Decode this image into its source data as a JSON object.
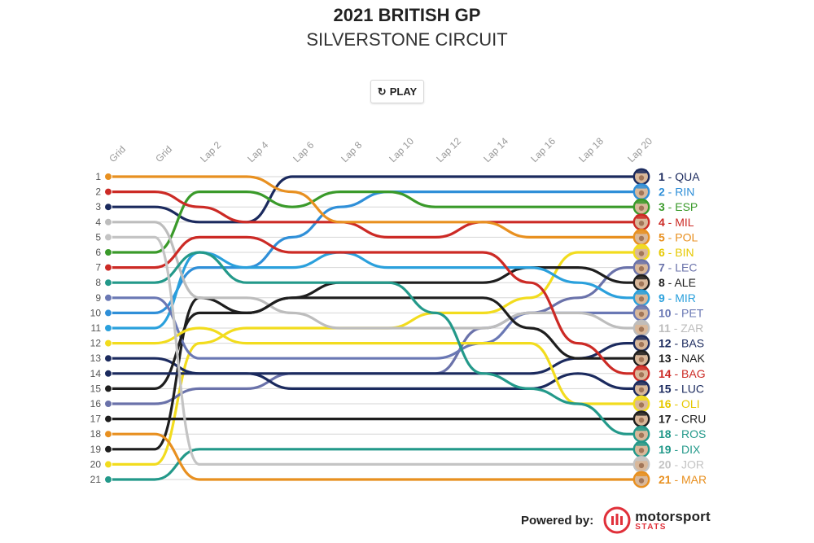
{
  "header": {
    "title": "2021 BRITISH GP",
    "subtitle": "SILVERSTONE CIRCUIT",
    "play_icon": "refresh-icon",
    "play_label": "PLAY"
  },
  "footer": {
    "powered_label": "Powered by:",
    "brand_name": "motorsport",
    "brand_sub": "STATS",
    "brand_color": "#e0303a"
  },
  "chart_data": {
    "type": "line",
    "x": [
      "Grid",
      "Grid",
      "Lap 2",
      "Lap 4",
      "Lap 6",
      "Lap 8",
      "Lap 10",
      "Lap 12",
      "Lap 14",
      "Lap 16",
      "Lap 18",
      "Lap 20"
    ],
    "y_ticks": [
      1,
      2,
      3,
      4,
      5,
      6,
      7,
      8,
      9,
      10,
      11,
      12,
      13,
      14,
      15,
      16,
      17,
      18,
      19,
      20,
      21
    ],
    "ylim": [
      1,
      21
    ],
    "y_inverted": true,
    "grid": true,
    "series": [
      {
        "name": "QUA",
        "final": 1,
        "color": "#1b2a5e",
        "grid": 3,
        "values": [
          3,
          3,
          4,
          4,
          1,
          1,
          1,
          1,
          1,
          1,
          1,
          1
        ]
      },
      {
        "name": "RIN",
        "final": 2,
        "color": "#2f8fd8",
        "grid": 10,
        "values": [
          10,
          10,
          7,
          7,
          5,
          3,
          2,
          2,
          2,
          2,
          2,
          2
        ]
      },
      {
        "name": "ESP",
        "final": 3,
        "color": "#3a9a2a",
        "grid": 6,
        "values": [
          6,
          6,
          2,
          2,
          3,
          2,
          2,
          3,
          3,
          3,
          3,
          3
        ]
      },
      {
        "name": "MIL",
        "final": 4,
        "color": "#cc2a25",
        "grid": 2,
        "values": [
          2,
          2,
          3,
          4,
          4,
          4,
          5,
          5,
          4,
          4,
          4,
          4
        ]
      },
      {
        "name": "POL",
        "final": 5,
        "color": "#e89020",
        "grid": 1,
        "values": [
          1,
          1,
          1,
          1,
          2,
          4,
          4,
          4,
          4,
          5,
          5,
          5
        ]
      },
      {
        "name": "BIN",
        "final": 6,
        "color": "#f2dc1e",
        "grid": 20,
        "values": [
          20,
          20,
          12,
          11,
          11,
          11,
          11,
          10,
          10,
          9,
          6,
          6
        ]
      },
      {
        "name": "LEC",
        "final": 7,
        "color": "#6a72aa",
        "grid": 16,
        "values": [
          16,
          16,
          15,
          15,
          14,
          14,
          14,
          14,
          11,
          10,
          9,
          7
        ]
      },
      {
        "name": "ALE",
        "final": 8,
        "color": "#1e1e1e",
        "grid": 19,
        "values": [
          19,
          19,
          9,
          10,
          9,
          8,
          8,
          8,
          8,
          7,
          7,
          8
        ]
      },
      {
        "name": "MIR",
        "final": 9,
        "color": "#2aa0dc",
        "grid": 11,
        "values": [
          11,
          11,
          6,
          7,
          7,
          6,
          7,
          7,
          7,
          7,
          8,
          9
        ]
      },
      {
        "name": "PET",
        "final": 10,
        "color": "#6a78b4",
        "grid": 9,
        "values": [
          9,
          9,
          13,
          13,
          13,
          13,
          13,
          13,
          12,
          10,
          10,
          10
        ]
      },
      {
        "name": "ZAR",
        "final": 11,
        "color": "#bdbdbd",
        "grid": 4,
        "values": [
          4,
          4,
          9,
          9,
          10,
          11,
          11,
          11,
          11,
          10,
          10,
          11
        ]
      },
      {
        "name": "BAS",
        "final": 12,
        "color": "#1b2a5e",
        "grid": 13,
        "values": [
          13,
          13,
          14,
          14,
          14,
          14,
          14,
          14,
          14,
          14,
          13,
          12
        ]
      },
      {
        "name": "NAK",
        "final": 13,
        "color": "#1e1e1e",
        "grid": 15,
        "values": [
          15,
          15,
          10,
          10,
          9,
          9,
          9,
          9,
          9,
          11,
          13,
          13
        ]
      },
      {
        "name": "BAG",
        "final": 14,
        "color": "#cc2a25",
        "grid": 7,
        "values": [
          7,
          7,
          5,
          5,
          6,
          6,
          6,
          6,
          6,
          8,
          12,
          14
        ]
      },
      {
        "name": "LUC",
        "final": 15,
        "color": "#1b2a5e",
        "grid": 14,
        "values": [
          14,
          14,
          14,
          14,
          15,
          15,
          15,
          15,
          15,
          15,
          14,
          15
        ]
      },
      {
        "name": "OLI",
        "final": 16,
        "color": "#f2dc1e",
        "grid": 12,
        "values": [
          12,
          12,
          11,
          12,
          12,
          12,
          12,
          12,
          12,
          12,
          16,
          16
        ]
      },
      {
        "name": "CRU",
        "final": 17,
        "color": "#1e1e1e",
        "grid": 17,
        "values": [
          17,
          17,
          17,
          17,
          17,
          17,
          17,
          17,
          17,
          17,
          17,
          17
        ]
      },
      {
        "name": "ROS",
        "final": 18,
        "color": "#23998a",
        "grid": 8,
        "values": [
          8,
          8,
          6,
          8,
          8,
          8,
          8,
          10,
          14,
          15,
          16,
          18
        ]
      },
      {
        "name": "DIX",
        "final": 19,
        "color": "#23998a",
        "grid": 21,
        "values": [
          21,
          21,
          19,
          19,
          19,
          19,
          19,
          19,
          19,
          19,
          19,
          19
        ]
      },
      {
        "name": "JOR",
        "final": 20,
        "color": "#c4c4c4",
        "grid": 5,
        "values": [
          5,
          5,
          20,
          20,
          20,
          20,
          20,
          20,
          20,
          20,
          20,
          20
        ]
      },
      {
        "name": "MAR",
        "final": 21,
        "color": "#e89020",
        "grid": 18,
        "values": [
          18,
          18,
          21,
          21,
          21,
          21,
          21,
          21,
          21,
          21,
          21,
          21
        ]
      }
    ]
  }
}
